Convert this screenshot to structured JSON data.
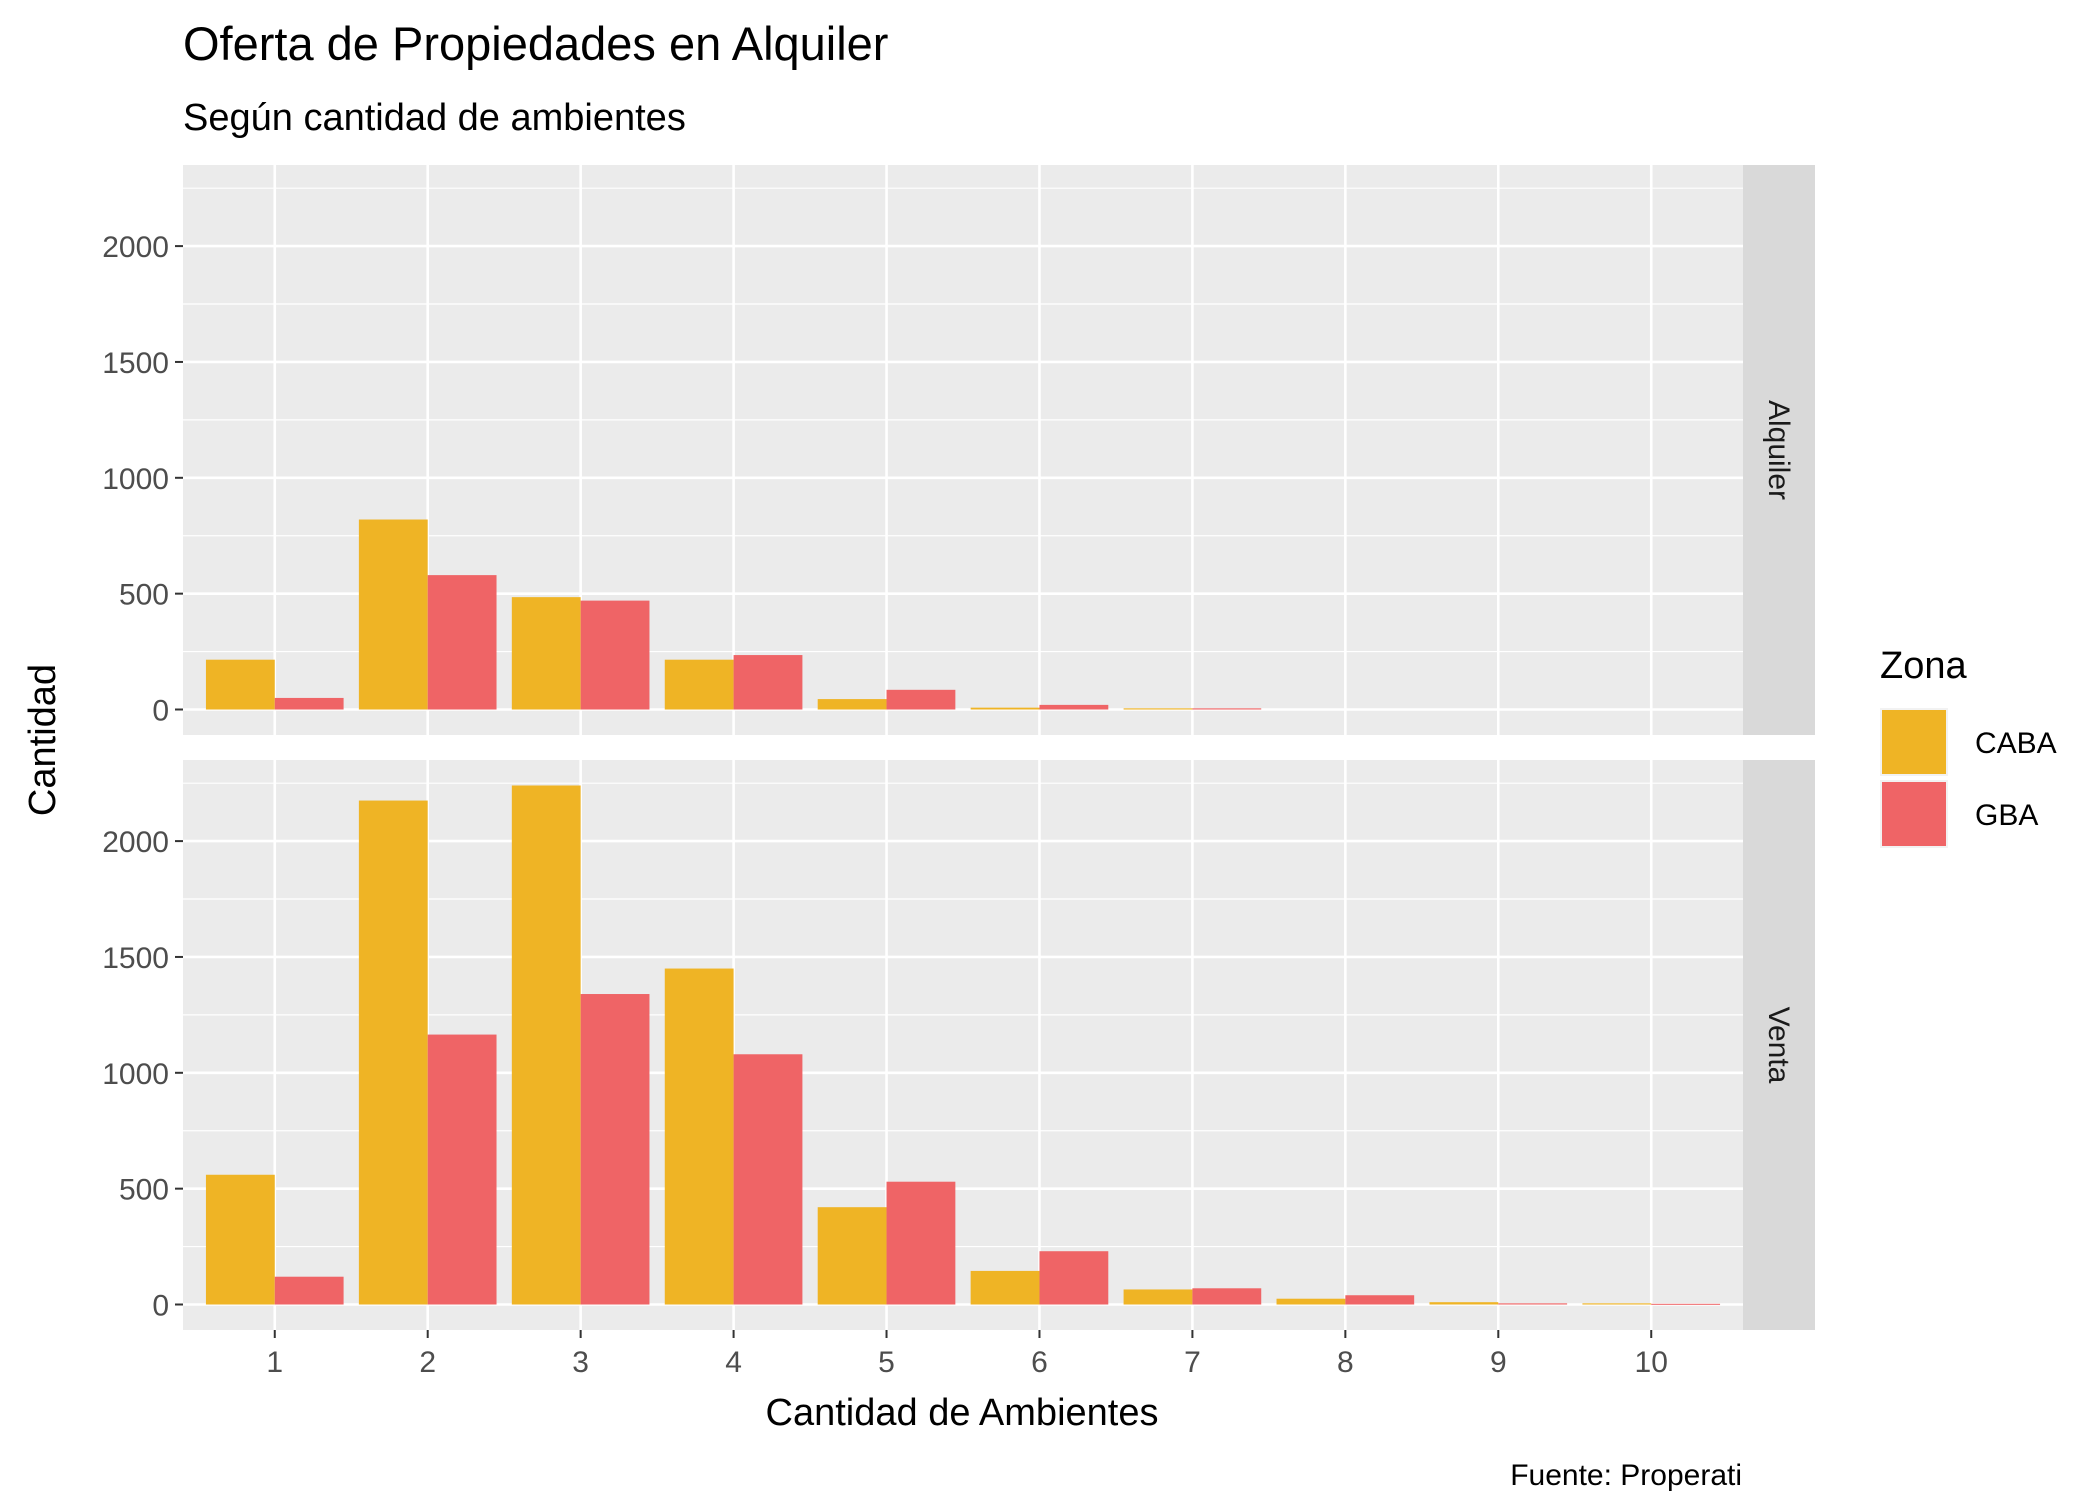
{
  "chart_data": {
    "type": "bar",
    "title": "Oferta de Propiedades en Alquiler",
    "subtitle": "Según cantidad de ambientes",
    "xlabel": "Cantidad de Ambientes",
    "ylabel": "Cantidad",
    "caption": "Fuente: Properati",
    "categories": [
      "1",
      "2",
      "3",
      "4",
      "5",
      "6",
      "7",
      "8",
      "9",
      "10"
    ],
    "ylim": [
      -110,
      2350
    ],
    "yticks": [
      0,
      500,
      1000,
      1500,
      2000
    ],
    "grid": true,
    "legend": {
      "title": "Zona",
      "position": "right",
      "entries": [
        "CABA",
        "GBA"
      ]
    },
    "colors": {
      "CABA": "#EFB425",
      "GBA": "#EF6466"
    },
    "facets": [
      {
        "label": "Alquiler",
        "series": [
          {
            "name": "CABA",
            "values": [
              215,
              820,
              485,
              215,
              45,
              8,
              5,
              0,
              0,
              0
            ]
          },
          {
            "name": "GBA",
            "values": [
              50,
              580,
              470,
              235,
              85,
              20,
              5,
              0,
              0,
              0
            ]
          }
        ]
      },
      {
        "label": "Venta",
        "series": [
          {
            "name": "CABA",
            "values": [
              560,
              2175,
              2240,
              1450,
              420,
              145,
              65,
              25,
              10,
              5
            ]
          },
          {
            "name": "GBA",
            "values": [
              120,
              1165,
              1340,
              1080,
              530,
              230,
              70,
              40,
              5,
              3
            ]
          }
        ]
      }
    ]
  }
}
